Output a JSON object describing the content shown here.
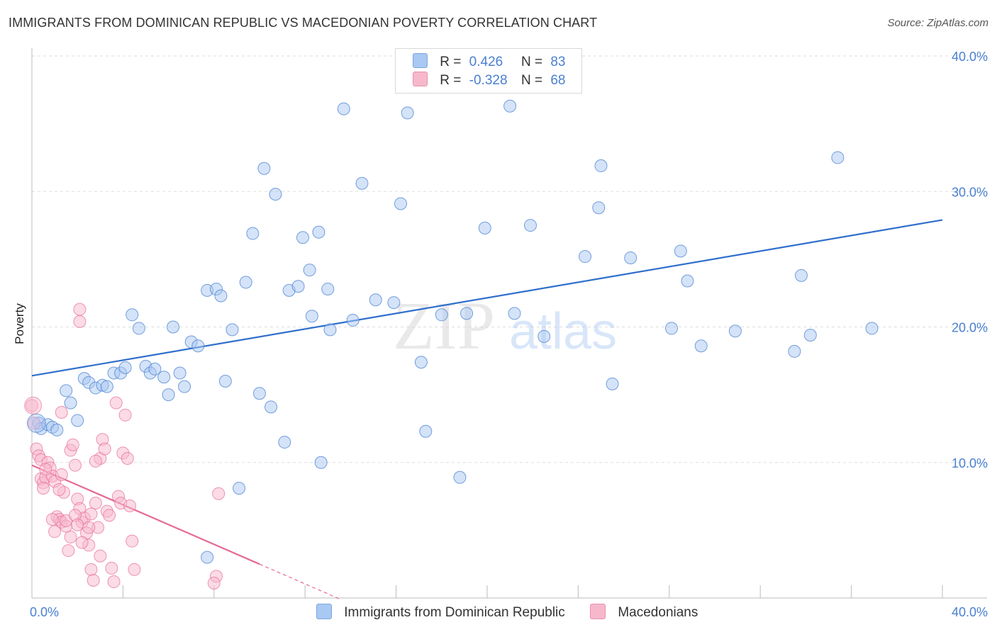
{
  "title": "IMMIGRANTS FROM DOMINICAN REPUBLIC VS MACEDONIAN POVERTY CORRELATION CHART",
  "source": "Source: ZipAtlas.com",
  "watermark": {
    "zip": "ZIP",
    "atlas": "atlas"
  },
  "legend": {
    "rows": [
      {
        "r_label": "R =",
        "r_value": "0.426",
        "n_label": "N =",
        "n_value": "83",
        "color": "#a9c8f2"
      },
      {
        "r_label": "R =",
        "r_value": "-0.328",
        "n_label": "N =",
        "n_value": "68",
        "color": "#f7b8cb"
      }
    ]
  },
  "bottom_legend": [
    {
      "label": "Immigrants from Dominican Republic",
      "color": "#a9c8f2"
    },
    {
      "label": "Macedonians",
      "color": "#f7b8cb"
    }
  ],
  "chart_data": {
    "type": "scatter",
    "title": "IMMIGRANTS FROM DOMINICAN REPUBLIC VS MACEDONIAN POVERTY CORRELATION CHART",
    "xlabel": "",
    "ylabel": "Poverty",
    "xlim": [
      0,
      40
    ],
    "ylim": [
      0,
      40
    ],
    "x_tick_labels": [
      "0.0%",
      "40.0%"
    ],
    "y_tick_labels": [
      "10.0%",
      "20.0%",
      "30.0%",
      "40.0%"
    ],
    "y_ticks": [
      10,
      20,
      30,
      40
    ],
    "grid": "horizontal dashed",
    "legend_placement": "top-center",
    "series": [
      {
        "name": "Immigrants from Dominican Republic",
        "color": "#4a80d1",
        "fill": "#a9c8f2",
        "trend": {
          "x0": 0,
          "y0": 16.4,
          "x1": 40,
          "y1": 27.9
        },
        "points": [
          [
            0.3,
            12.9
          ],
          [
            0.4,
            12.5
          ],
          [
            0.7,
            12.8
          ],
          [
            0.9,
            12.6
          ],
          [
            1.1,
            12.4
          ],
          [
            1.5,
            15.3
          ],
          [
            1.7,
            14.4
          ],
          [
            2.0,
            13.1
          ],
          [
            2.3,
            16.2
          ],
          [
            2.5,
            15.9
          ],
          [
            2.8,
            15.5
          ],
          [
            3.1,
            15.7
          ],
          [
            3.3,
            15.6
          ],
          [
            3.6,
            16.6
          ],
          [
            3.9,
            16.6
          ],
          [
            4.1,
            17.0
          ],
          [
            4.4,
            20.9
          ],
          [
            4.7,
            19.9
          ],
          [
            5.0,
            17.1
          ],
          [
            5.2,
            16.6
          ],
          [
            5.4,
            16.9
          ],
          [
            5.8,
            16.3
          ],
          [
            6.0,
            15.0
          ],
          [
            6.2,
            20.0
          ],
          [
            6.5,
            16.6
          ],
          [
            6.7,
            15.6
          ],
          [
            7.0,
            18.9
          ],
          [
            7.3,
            18.6
          ],
          [
            7.7,
            3.0
          ],
          [
            7.7,
            22.7
          ],
          [
            8.1,
            22.8
          ],
          [
            8.3,
            22.3
          ],
          [
            8.5,
            16.0
          ],
          [
            8.8,
            19.8
          ],
          [
            9.1,
            8.1
          ],
          [
            9.4,
            23.3
          ],
          [
            9.7,
            26.9
          ],
          [
            10.0,
            15.1
          ],
          [
            10.2,
            31.7
          ],
          [
            10.5,
            14.1
          ],
          [
            10.7,
            29.8
          ],
          [
            11.1,
            11.5
          ],
          [
            11.3,
            22.7
          ],
          [
            11.7,
            23.0
          ],
          [
            11.9,
            26.6
          ],
          [
            12.2,
            24.2
          ],
          [
            12.3,
            20.8
          ],
          [
            12.6,
            27.0
          ],
          [
            12.7,
            10.0
          ],
          [
            13.0,
            22.8
          ],
          [
            13.1,
            19.8
          ],
          [
            13.7,
            36.1
          ],
          [
            14.1,
            20.5
          ],
          [
            14.5,
            30.6
          ],
          [
            15.1,
            22.0
          ],
          [
            15.9,
            21.8
          ],
          [
            16.2,
            29.1
          ],
          [
            16.5,
            35.8
          ],
          [
            17.1,
            17.4
          ],
          [
            17.3,
            12.3
          ],
          [
            18.0,
            20.9
          ],
          [
            18.8,
            8.9
          ],
          [
            19.1,
            21.0
          ],
          [
            19.9,
            27.3
          ],
          [
            21.0,
            36.3
          ],
          [
            21.2,
            21.0
          ],
          [
            21.9,
            27.5
          ],
          [
            22.5,
            19.3
          ],
          [
            24.3,
            25.2
          ],
          [
            24.9,
            28.8
          ],
          [
            25.0,
            31.9
          ],
          [
            25.5,
            15.8
          ],
          [
            26.3,
            25.1
          ],
          [
            28.1,
            19.9
          ],
          [
            28.5,
            25.6
          ],
          [
            28.8,
            23.4
          ],
          [
            29.4,
            18.6
          ],
          [
            30.9,
            19.7
          ],
          [
            33.5,
            18.2
          ],
          [
            33.8,
            23.8
          ],
          [
            34.2,
            19.4
          ],
          [
            35.4,
            32.5
          ],
          [
            36.9,
            19.9
          ]
        ]
      },
      {
        "name": "Macedonians",
        "color": "#e8739b",
        "fill": "#f7b8cb",
        "trend": {
          "x0": 0,
          "y0": 9.8,
          "x1": 10.0,
          "y1": 2.5,
          "dash_to_x": 13.5
        },
        "points": [
          [
            0.0,
            14.2
          ],
          [
            0.1,
            12.9
          ],
          [
            0.2,
            11.0
          ],
          [
            0.3,
            10.5
          ],
          [
            0.4,
            10.2
          ],
          [
            0.4,
            8.8
          ],
          [
            0.5,
            8.5
          ],
          [
            0.6,
            8.9
          ],
          [
            0.7,
            10.0
          ],
          [
            0.8,
            9.6
          ],
          [
            0.9,
            9.0
          ],
          [
            1.0,
            8.6
          ],
          [
            1.1,
            6.0
          ],
          [
            1.2,
            5.8
          ],
          [
            1.3,
            5.6
          ],
          [
            1.4,
            7.8
          ],
          [
            1.5,
            5.3
          ],
          [
            1.6,
            3.5
          ],
          [
            1.7,
            10.9
          ],
          [
            1.8,
            11.3
          ],
          [
            1.9,
            9.8
          ],
          [
            2.0,
            7.3
          ],
          [
            2.1,
            6.6
          ],
          [
            2.2,
            5.6
          ],
          [
            2.3,
            5.9
          ],
          [
            2.4,
            4.8
          ],
          [
            2.5,
            3.9
          ],
          [
            2.6,
            2.1
          ],
          [
            2.7,
            1.3
          ],
          [
            2.8,
            7.0
          ],
          [
            2.9,
            5.2
          ],
          [
            3.0,
            10.3
          ],
          [
            3.1,
            11.7
          ],
          [
            3.2,
            11.0
          ],
          [
            3.3,
            6.4
          ],
          [
            3.4,
            6.1
          ],
          [
            3.5,
            2.2
          ],
          [
            3.6,
            1.2
          ],
          [
            3.7,
            14.4
          ],
          [
            3.8,
            7.5
          ],
          [
            3.9,
            7.0
          ],
          [
            4.0,
            10.7
          ],
          [
            4.1,
            13.5
          ],
          [
            4.2,
            10.3
          ],
          [
            4.3,
            6.8
          ],
          [
            4.4,
            4.2
          ],
          [
            4.5,
            2.1
          ],
          [
            2.1,
            21.3
          ],
          [
            2.1,
            20.4
          ],
          [
            1.3,
            13.7
          ],
          [
            0.5,
            8.1
          ],
          [
            0.6,
            9.5
          ],
          [
            0.9,
            5.8
          ],
          [
            1.0,
            4.9
          ],
          [
            1.2,
            8.0
          ],
          [
            1.3,
            9.1
          ],
          [
            1.5,
            5.7
          ],
          [
            1.7,
            4.5
          ],
          [
            1.9,
            6.1
          ],
          [
            2.0,
            5.4
          ],
          [
            2.2,
            4.1
          ],
          [
            2.5,
            5.2
          ],
          [
            2.6,
            6.2
          ],
          [
            2.8,
            10.1
          ],
          [
            3.0,
            3.1
          ],
          [
            8.2,
            7.7
          ],
          [
            8.1,
            1.6
          ],
          [
            8.0,
            1.1
          ]
        ]
      }
    ]
  }
}
